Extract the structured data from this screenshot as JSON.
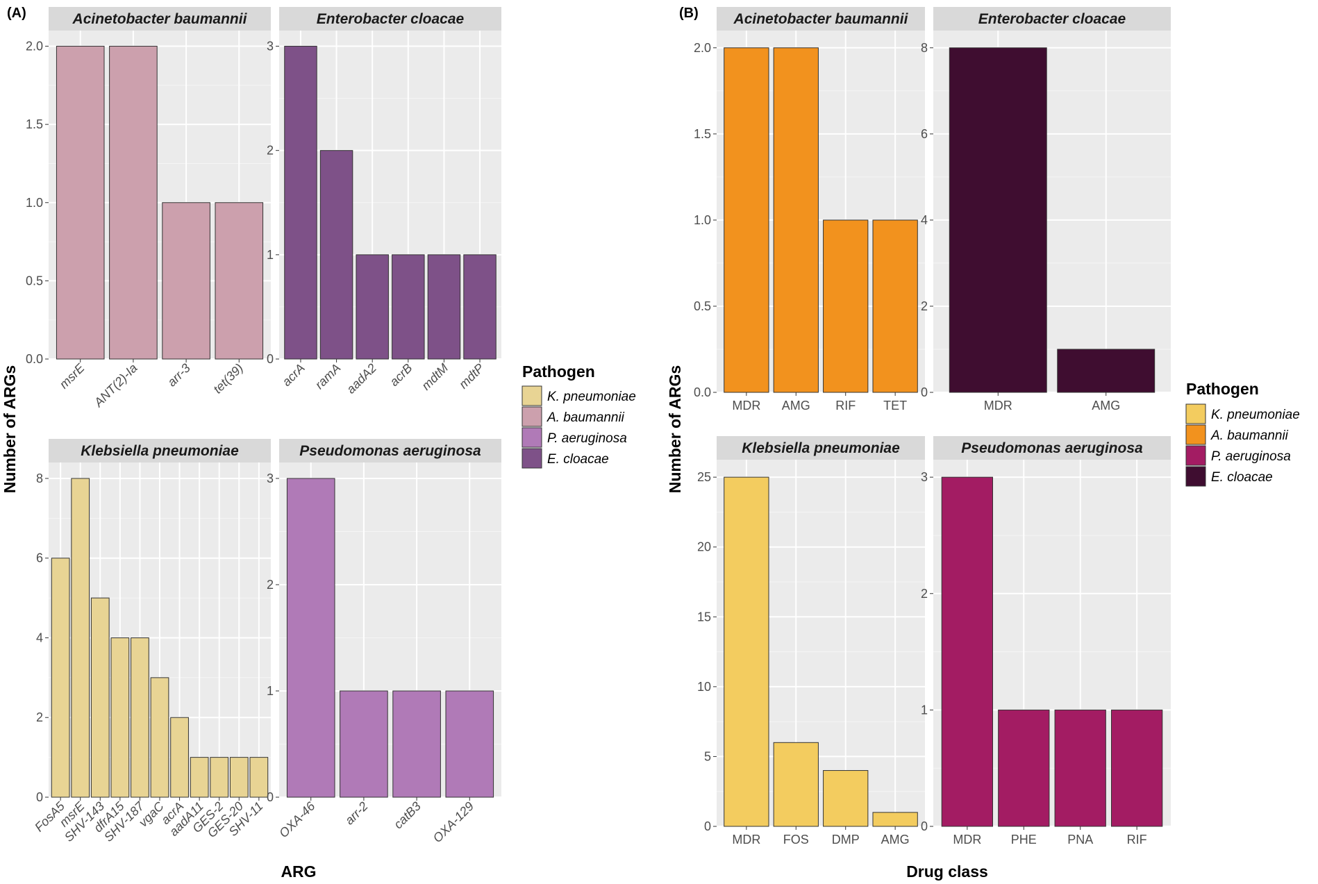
{
  "figure": {
    "left": {
      "label": "(A)",
      "xlabel": "ARG",
      "ylabel": "Number of ARGs",
      "legend_title": "Pathogen",
      "legend": [
        {
          "label": "K. pneumoniae",
          "color": "#E8D494"
        },
        {
          "label": "A. baumannii",
          "color": "#CCA0AD"
        },
        {
          "label": "P. aeruginosa",
          "color": "#B07AB7"
        },
        {
          "label": "E. cloacae",
          "color": "#7E5188"
        }
      ]
    },
    "right": {
      "label": "(B)",
      "xlabel": "Drug class",
      "ylabel": "Number of ARGs",
      "legend_title": "Pathogen",
      "legend": [
        {
          "label": "K. pneumoniae",
          "color": "#F3CC5F"
        },
        {
          "label": "A. baumannii",
          "color": "#F2921E"
        },
        {
          "label": "P. aeruginosa",
          "color": "#A31C63"
        },
        {
          "label": "E. cloacae",
          "color": "#3F0D30"
        }
      ]
    }
  },
  "chart_data": [
    {
      "type": "bar",
      "group": "A",
      "title": "Acinetobacter baumannii",
      "color": "#CCA0AD",
      "categories": [
        "msrE",
        "ANT(2)-Ia",
        "arr-3",
        "tet(39)"
      ],
      "values": [
        2,
        2,
        1,
        1
      ],
      "ylim": [
        0,
        2.1
      ],
      "yticks": [
        0.0,
        0.5,
        1.0,
        1.5,
        2.0
      ],
      "tick_decimals": 1,
      "xlabel": "ARG",
      "ylabel": "Number of ARGs"
    },
    {
      "type": "bar",
      "group": "A",
      "title": "Enterobacter cloacae",
      "color": "#7E5188",
      "categories": [
        "acrA",
        "ramA",
        "aadA2",
        "acrB",
        "mdtM",
        "mdtP"
      ],
      "values": [
        3,
        2,
        1,
        1,
        1,
        1
      ],
      "ylim": [
        0,
        3.15
      ],
      "yticks": [
        0,
        1,
        2,
        3
      ],
      "tick_decimals": 0,
      "xlabel": "ARG",
      "ylabel": "Number of ARGs"
    },
    {
      "type": "bar",
      "group": "A",
      "title": "Klebsiella pneumoniae",
      "color": "#E8D494",
      "categories": [
        "FosA5",
        "msrE",
        "SHV-143",
        "dfrA15",
        "SHV-187",
        "vgaC",
        "acrA",
        "aadA11",
        "GES-2",
        "GES-20",
        "SHV-11"
      ],
      "values": [
        6,
        8,
        5,
        4,
        4,
        3,
        2,
        1,
        1,
        1,
        1
      ],
      "ylim": [
        0,
        8.4
      ],
      "yticks": [
        0,
        2,
        4,
        6,
        8
      ],
      "tick_decimals": 0,
      "xlabel": "ARG",
      "ylabel": "Number of ARGs"
    },
    {
      "type": "bar",
      "group": "A",
      "title": "Pseudomonas aeruginosa",
      "color": "#B07AB7",
      "categories": [
        "OXA-46",
        "arr-2",
        "catB3",
        "OXA-129"
      ],
      "values": [
        3,
        1,
        1,
        1
      ],
      "ylim": [
        0,
        3.15
      ],
      "yticks": [
        0,
        1,
        2,
        3
      ],
      "tick_decimals": 0,
      "xlabel": "ARG",
      "ylabel": "Number of ARGs"
    },
    {
      "type": "bar",
      "group": "B",
      "title": "Acinetobacter baumannii",
      "color": "#F2921E",
      "categories": [
        "MDR",
        "AMG",
        "RIF",
        "TET"
      ],
      "values": [
        2,
        2,
        1,
        1
      ],
      "ylim": [
        0,
        2.1
      ],
      "yticks": [
        0.0,
        0.5,
        1.0,
        1.5,
        2.0
      ],
      "tick_decimals": 1,
      "xlabel": "Drug class",
      "ylabel": "Number of ARGs"
    },
    {
      "type": "bar",
      "group": "B",
      "title": "Enterobacter cloacae",
      "color": "#3F0D30",
      "categories": [
        "MDR",
        "AMG"
      ],
      "values": [
        8,
        1
      ],
      "ylim": [
        0,
        8.4
      ],
      "yticks": [
        0,
        2,
        4,
        6,
        8
      ],
      "tick_decimals": 0,
      "xlabel": "Drug class",
      "ylabel": "Number of ARGs"
    },
    {
      "type": "bar",
      "group": "B",
      "title": "Klebsiella pneumoniae",
      "color": "#F3CC5F",
      "categories": [
        "MDR",
        "FOS",
        "DMP",
        "AMG"
      ],
      "values": [
        25,
        6,
        4,
        1
      ],
      "ylim": [
        0,
        26.25
      ],
      "yticks": [
        0,
        5,
        10,
        15,
        20,
        25
      ],
      "tick_decimals": 0,
      "xlabel": "Drug class",
      "ylabel": "Number of ARGs"
    },
    {
      "type": "bar",
      "group": "B",
      "title": "Pseudomonas aeruginosa",
      "color": "#A31C63",
      "categories": [
        "MDR",
        "PHE",
        "PNA",
        "RIF"
      ],
      "values": [
        3,
        1,
        1,
        1
      ],
      "ylim": [
        0,
        3.15
      ],
      "yticks": [
        0,
        1,
        2,
        3
      ],
      "tick_decimals": 0,
      "xlabel": "Drug class",
      "ylabel": "Number of ARGs"
    }
  ]
}
